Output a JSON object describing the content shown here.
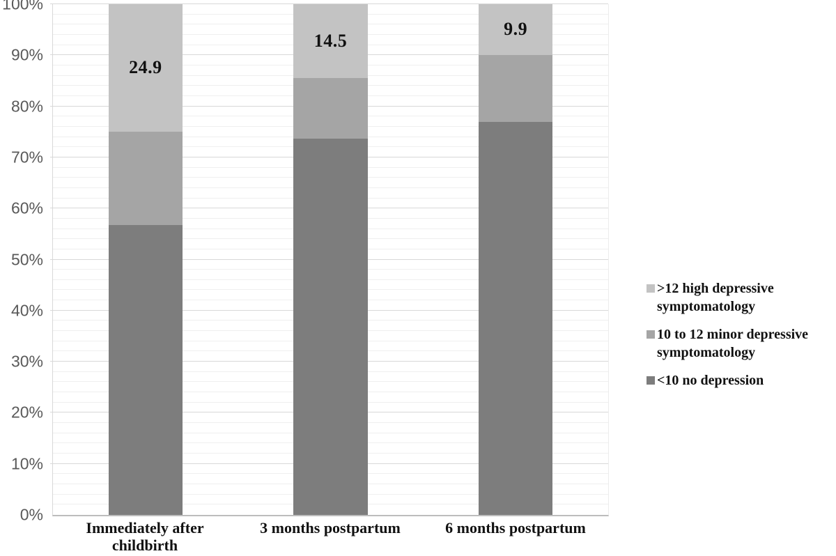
{
  "chart_data": {
    "type": "bar",
    "stacked": true,
    "units": "percent",
    "title": "",
    "xlabel": "",
    "ylabel": "",
    "ylim": [
      0,
      100
    ],
    "y_ticks": [
      "0%",
      "10%",
      "20%",
      "30%",
      "40%",
      "50%",
      "60%",
      "70%",
      "80%",
      "90%",
      "100%"
    ],
    "y_tick_step": 10,
    "grid": {
      "minor_step": 2,
      "major_step": 10,
      "minor_on": true,
      "major_on": true
    },
    "legend_position": "right",
    "categories": [
      "Immediately after childbirth",
      "3 months postpartum",
      "6 months postpartum"
    ],
    "series": [
      {
        "name": "<10 no depression",
        "color": "#7d7d7d",
        "values": [
          56.7,
          73.7,
          77.0
        ],
        "data_labels": [
          "",
          "",
          ""
        ]
      },
      {
        "name": "10 to 12 minor depressive symptomatology",
        "color": "#a5a5a5",
        "values": [
          18.4,
          11.8,
          13.1
        ],
        "data_labels": [
          "",
          "",
          ""
        ]
      },
      {
        "name": ">12 high depressive symptomatology",
        "color": "#c3c3c3",
        "values": [
          24.9,
          14.5,
          9.9
        ],
        "data_labels": [
          "24.9",
          "14.5",
          "9.9"
        ]
      }
    ],
    "colors": {
      "axis_line": "#bdbdbd",
      "major_gridline": "#d8d8d8",
      "minor_gridline": "#efefef",
      "tick_label": "#595959",
      "data_label_text": "#111111"
    }
  }
}
